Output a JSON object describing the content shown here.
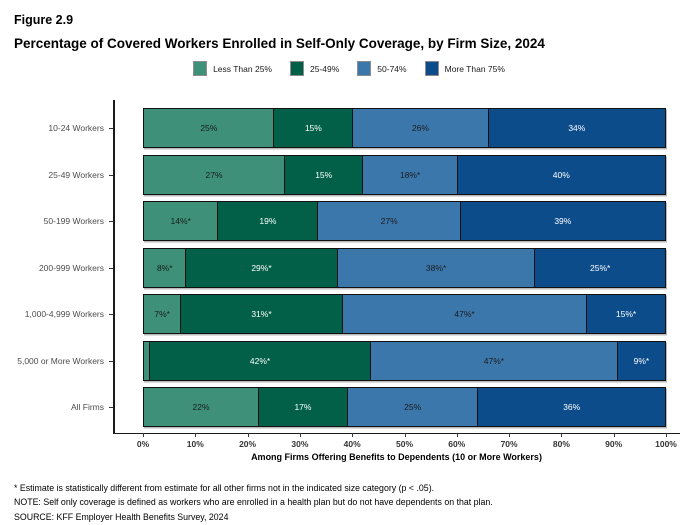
{
  "header": {
    "figure_label": "Figure 2.9",
    "title": "Percentage of Covered Workers Enrolled in Self-Only Coverage, by Firm Size, 2024"
  },
  "chart_data": {
    "type": "bar",
    "orientation": "horizontal",
    "stacked": true,
    "grid": false,
    "legend_position": "top",
    "xlim": [
      0,
      100
    ],
    "x_ticks": [
      "0%",
      "10%",
      "20%",
      "30%",
      "40%",
      "50%",
      "60%",
      "70%",
      "80%",
      "90%",
      "100%"
    ],
    "xlabel": "Among Firms Offering Benefits to Dependents (10 or More Workers)",
    "categories": [
      "10-24 Workers",
      "25-49 Workers",
      "50-199 Workers",
      "200-999 Workers",
      "1,000-4,999 Workers",
      "5,000 or More Workers",
      "All Firms"
    ],
    "series": [
      {
        "name": "Less Than 25%",
        "color": "#3E9178",
        "label_color": "#1a1a1a",
        "values": [
          25,
          27,
          14,
          8,
          7,
          1,
          22
        ],
        "labels": [
          "25%",
          "27%",
          "14%*",
          "8%*",
          "7%*",
          "",
          "22%"
        ]
      },
      {
        "name": "25-49%",
        "color": "#026049",
        "label_color": "#ffffff",
        "values": [
          15,
          15,
          19,
          29,
          31,
          42,
          17
        ],
        "labels": [
          "15%",
          "15%",
          "19%",
          "29%*",
          "31%*",
          "42%*",
          "17%"
        ]
      },
      {
        "name": "50-74%",
        "color": "#3C77AC",
        "label_color": "#1a1a1a",
        "values": [
          26,
          18,
          27,
          38,
          47,
          47,
          25
        ],
        "labels": [
          "26%",
          "18%*",
          "27%",
          "38%*",
          "47%*",
          "47%*",
          "25%"
        ]
      },
      {
        "name": "More Than 75%",
        "color": "#0C4C8B",
        "label_color": "#ffffff",
        "values": [
          34,
          40,
          39,
          25,
          15,
          9,
          36
        ],
        "labels": [
          "34%",
          "40%",
          "39%",
          "25%*",
          "15%*",
          "9%*",
          "36%"
        ]
      }
    ]
  },
  "footnotes": [
    "* Estimate is statistically different from estimate for all other firms not in the indicated size category (p < .05).",
    "NOTE: Self only coverage is defined as workers who are enrolled in a health plan but do not have dependents on that plan.",
    "SOURCE: KFF Employer Health Benefits Survey, 2024"
  ]
}
